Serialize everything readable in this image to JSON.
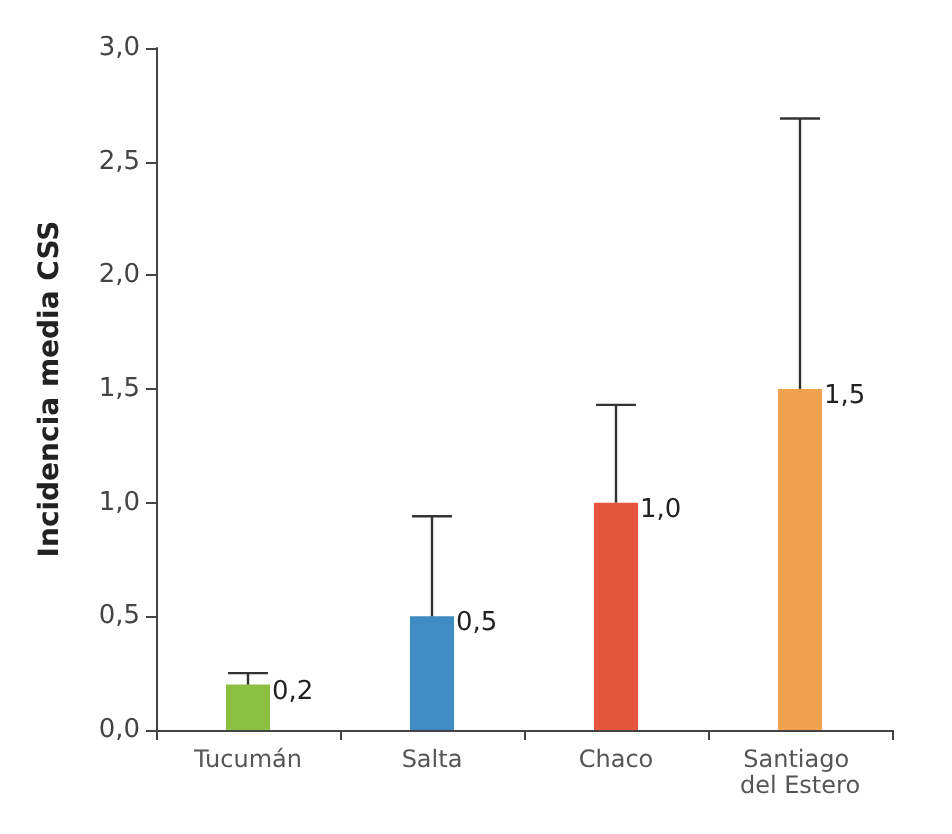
{
  "chart_data": {
    "type": "bar",
    "ylabel": "Incidencia media CSS",
    "categories": [
      "Tucumán",
      "Salta",
      "Chaco",
      "Santiago del Estero"
    ],
    "values": [
      0.2,
      0.5,
      1.0,
      1.5
    ],
    "colors": [
      "#8cc043",
      "#3f8cc4",
      "#e4553b",
      "#f0a24c"
    ],
    "errors": [
      [
        0.2,
        0.25
      ],
      [
        0.5,
        0.94
      ],
      [
        1.0,
        1.43
      ],
      [
        1.5,
        2.69
      ]
    ],
    "value_labels": [
      "0,2",
      "0,5",
      "1,0",
      "1,5"
    ],
    "ylim": [
      0,
      3
    ],
    "yticks": [
      {
        "value": 0,
        "label": "0,0"
      },
      {
        "value": 0.5,
        "label": "0,5"
      },
      {
        "value": 1,
        "label": "1,0"
      },
      {
        "value": 1.5,
        "label": "1,5"
      },
      {
        "value": 2,
        "label": "2,0"
      },
      {
        "value": 2.5,
        "label": "2,5"
      },
      {
        "value": 3,
        "label": "3,0"
      }
    ],
    "grid": false
  }
}
